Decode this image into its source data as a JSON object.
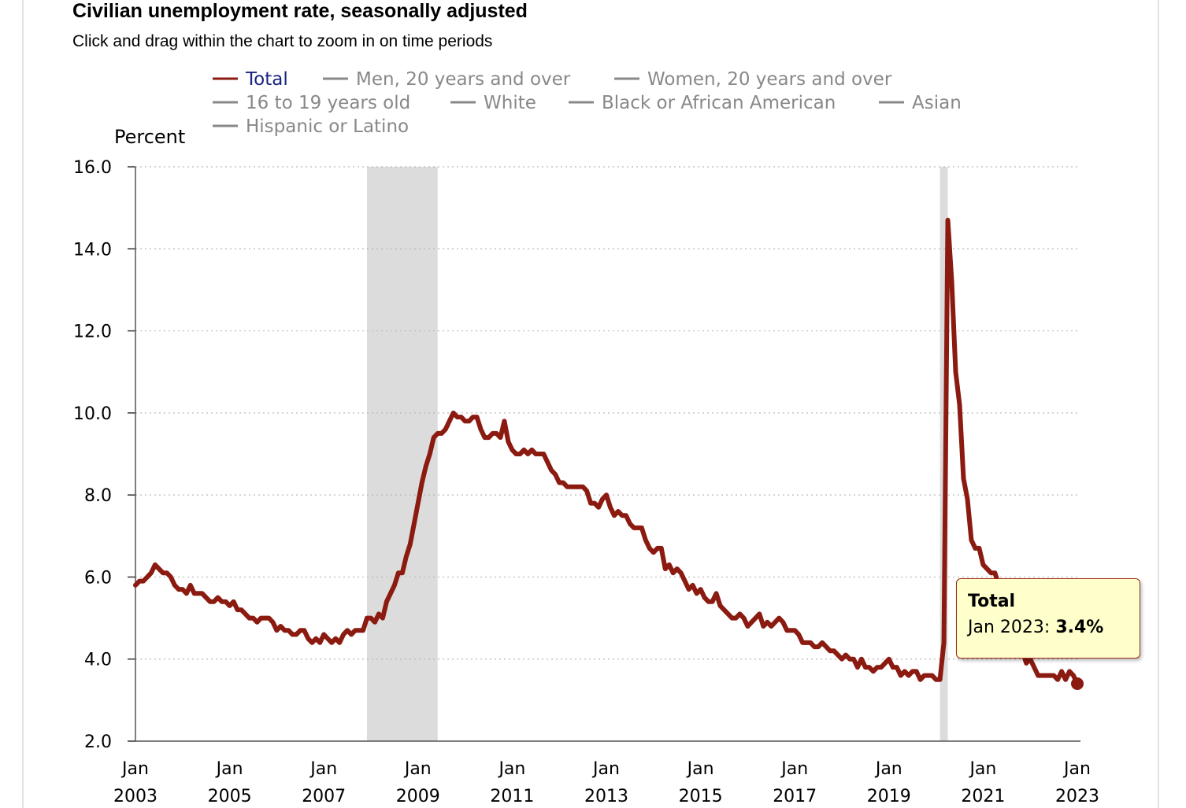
{
  "header": {
    "title": "Civilian unemployment rate, seasonally adjusted",
    "subtitle": "Click and drag within the chart to zoom in on time periods"
  },
  "tooltip": {
    "series": "Total",
    "date": "Jan 2023",
    "separator": ": ",
    "value": "3.4%"
  },
  "colors": {
    "total_line": "#8b1a10",
    "inactive_legend": "#888888",
    "active_legend_text": "#1a237e",
    "recession_shade": "#dcdcdc"
  },
  "chart_data": {
    "type": "line",
    "title": "Civilian unemployment rate, seasonally adjusted",
    "ylabel": "Percent",
    "ylim": [
      2.0,
      16.0
    ],
    "yticks": [
      "2.0",
      "4.0",
      "6.0",
      "8.0",
      "10.0",
      "12.0",
      "14.0",
      "16.0"
    ],
    "xticks": [
      {
        "month": "Jan",
        "year": "2003"
      },
      {
        "month": "Jan",
        "year": "2005"
      },
      {
        "month": "Jan",
        "year": "2007"
      },
      {
        "month": "Jan",
        "year": "2009"
      },
      {
        "month": "Jan",
        "year": "2011"
      },
      {
        "month": "Jan",
        "year": "2013"
      },
      {
        "month": "Jan",
        "year": "2015"
      },
      {
        "month": "Jan",
        "year": "2017"
      },
      {
        "month": "Jan",
        "year": "2019"
      },
      {
        "month": "Jan",
        "year": "2021"
      },
      {
        "month": "Jan",
        "year": "2023"
      }
    ],
    "x_start": "2003-01",
    "x_end": "2023-01",
    "grid": true,
    "legend_placement": "top",
    "legend": [
      {
        "name": "Total",
        "active": true
      },
      {
        "name": "Men, 20 years and over",
        "active": false
      },
      {
        "name": "Women, 20 years and over",
        "active": false
      },
      {
        "name": "16 to 19 years old",
        "active": false
      },
      {
        "name": "White",
        "active": false
      },
      {
        "name": "Black or African American",
        "active": false
      },
      {
        "name": "Asian",
        "active": false
      },
      {
        "name": "Hispanic or Latino",
        "active": false
      }
    ],
    "recessions": [
      {
        "start": "2007-12",
        "end": "2009-06"
      },
      {
        "start": "2020-02",
        "end": "2020-04"
      }
    ],
    "series": [
      {
        "name": "Total",
        "start": "2003-01",
        "frequency": "monthly",
        "values": [
          5.8,
          5.9,
          5.9,
          6.0,
          6.1,
          6.3,
          6.2,
          6.1,
          6.1,
          6.0,
          5.8,
          5.7,
          5.7,
          5.6,
          5.8,
          5.6,
          5.6,
          5.6,
          5.5,
          5.4,
          5.4,
          5.5,
          5.4,
          5.4,
          5.3,
          5.4,
          5.2,
          5.2,
          5.1,
          5.0,
          5.0,
          4.9,
          5.0,
          5.0,
          5.0,
          4.9,
          4.7,
          4.8,
          4.7,
          4.7,
          4.6,
          4.6,
          4.7,
          4.7,
          4.5,
          4.4,
          4.5,
          4.4,
          4.6,
          4.5,
          4.4,
          4.5,
          4.4,
          4.6,
          4.7,
          4.6,
          4.7,
          4.7,
          4.7,
          5.0,
          5.0,
          4.9,
          5.1,
          5.0,
          5.4,
          5.6,
          5.8,
          6.1,
          6.1,
          6.5,
          6.8,
          7.3,
          7.8,
          8.3,
          8.7,
          9.0,
          9.4,
          9.5,
          9.5,
          9.6,
          9.8,
          10.0,
          9.9,
          9.9,
          9.8,
          9.8,
          9.9,
          9.9,
          9.6,
          9.4,
          9.4,
          9.5,
          9.5,
          9.4,
          9.8,
          9.3,
          9.1,
          9.0,
          9.0,
          9.1,
          9.0,
          9.1,
          9.0,
          9.0,
          9.0,
          8.8,
          8.6,
          8.5,
          8.3,
          8.3,
          8.2,
          8.2,
          8.2,
          8.2,
          8.2,
          8.1,
          7.8,
          7.8,
          7.7,
          7.9,
          8.0,
          7.7,
          7.5,
          7.6,
          7.5,
          7.5,
          7.3,
          7.2,
          7.2,
          7.2,
          6.9,
          6.7,
          6.6,
          6.7,
          6.7,
          6.2,
          6.3,
          6.1,
          6.2,
          6.1,
          5.9,
          5.7,
          5.8,
          5.6,
          5.7,
          5.5,
          5.4,
          5.4,
          5.6,
          5.3,
          5.2,
          5.1,
          5.0,
          5.0,
          5.1,
          5.0,
          4.8,
          4.9,
          5.0,
          5.1,
          4.8,
          4.9,
          4.8,
          4.9,
          5.0,
          4.9,
          4.7,
          4.7,
          4.7,
          4.6,
          4.4,
          4.4,
          4.4,
          4.3,
          4.3,
          4.4,
          4.3,
          4.2,
          4.2,
          4.1,
          4.0,
          4.1,
          4.0,
          4.0,
          3.8,
          4.0,
          3.8,
          3.8,
          3.7,
          3.8,
          3.8,
          3.9,
          4.0,
          3.8,
          3.8,
          3.6,
          3.7,
          3.6,
          3.7,
          3.7,
          3.5,
          3.6,
          3.6,
          3.6,
          3.5,
          3.5,
          4.4,
          14.7,
          13.2,
          11.0,
          10.2,
          8.4,
          7.9,
          6.9,
          6.7,
          6.7,
          6.3,
          6.2,
          6.1,
          6.1,
          5.8,
          5.9,
          5.4,
          5.2,
          4.8,
          4.5,
          4.2,
          3.9,
          4.0,
          3.8,
          3.6,
          3.6,
          3.6,
          3.6,
          3.6,
          3.5,
          3.7,
          3.5,
          3.7,
          3.6,
          3.4
        ]
      }
    ]
  }
}
